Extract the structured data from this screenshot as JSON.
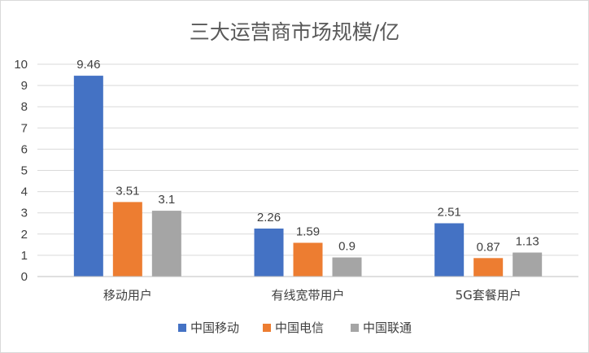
{
  "chart_data": {
    "type": "bar",
    "title": "三大运营商市场规模/亿",
    "categories": [
      "移动用户",
      "有线宽带用户",
      "5G套餐用户"
    ],
    "series": [
      {
        "name": "中国移动",
        "values": [
          9.46,
          2.26,
          2.51
        ],
        "color": "#4472c4"
      },
      {
        "name": "中国电信",
        "values": [
          3.51,
          1.59,
          0.87
        ],
        "color": "#ed7d31"
      },
      {
        "name": "中国联通",
        "values": [
          3.1,
          0.9,
          1.13
        ],
        "color": "#a5a5a5"
      }
    ],
    "ylim": [
      0,
      10
    ],
    "yticks": [
      0,
      1,
      2,
      3,
      4,
      5,
      6,
      7,
      8,
      9,
      10
    ],
    "grid": true,
    "legend_position": "bottom"
  }
}
